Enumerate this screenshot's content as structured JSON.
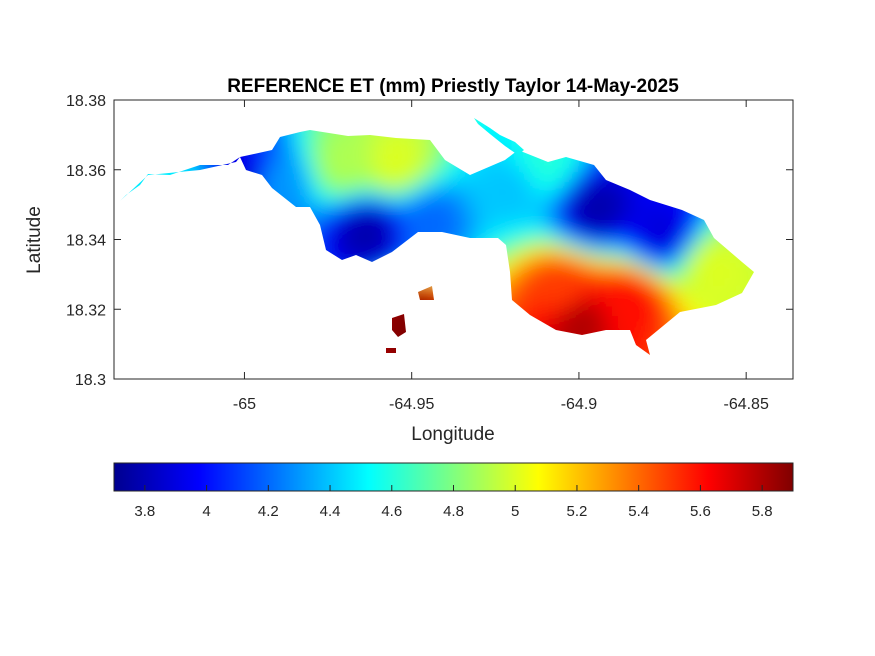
{
  "chart_data": {
    "type": "heatmap",
    "title": "REFERENCE ET (mm) Priestly Taylor 14-May-2025",
    "xlabel": "Longitude",
    "ylabel": "Latitude",
    "xlim": [
      -65.039,
      -64.836
    ],
    "ylim": [
      18.3,
      18.38
    ],
    "x_ticks": [
      -65,
      -64.95,
      -64.9,
      -64.85
    ],
    "x_tick_labels": [
      "-65",
      "-64.95",
      "-64.9",
      "-64.85"
    ],
    "y_ticks": [
      18.3,
      18.32,
      18.34,
      18.36,
      18.38
    ],
    "y_tick_labels": [
      "18.3",
      "18.32",
      "18.34",
      "18.36",
      "18.38"
    ],
    "grid": false,
    "colormap": "jet",
    "colorbar": {
      "location": "bottom",
      "range": [
        3.7,
        5.9
      ],
      "ticks": [
        3.8,
        4,
        4.2,
        4.4,
        4.6,
        4.8,
        5,
        5.2,
        5.4,
        5.6,
        5.8
      ],
      "tick_labels": [
        "3.8",
        "4",
        "4.2",
        "4.4",
        "4.6",
        "4.8",
        "5",
        "5.2",
        "5.4",
        "5.6",
        "5.8"
      ]
    },
    "approx_field_samples": [
      {
        "lon": -65.02,
        "lat": 18.352,
        "value": 4.5
      },
      {
        "lon": -65.0,
        "lat": 18.358,
        "value": 3.9
      },
      {
        "lon": -64.99,
        "lat": 18.356,
        "value": 4.3
      },
      {
        "lon": -64.97,
        "lat": 18.362,
        "value": 4.9
      },
      {
        "lon": -64.963,
        "lat": 18.342,
        "value": 3.8
      },
      {
        "lon": -64.955,
        "lat": 18.362,
        "value": 5.0
      },
      {
        "lon": -64.945,
        "lat": 18.345,
        "value": 4.2
      },
      {
        "lon": -64.92,
        "lat": 18.355,
        "value": 4.4
      },
      {
        "lon": -64.91,
        "lat": 18.362,
        "value": 4.6
      },
      {
        "lon": -64.895,
        "lat": 18.349,
        "value": 3.8
      },
      {
        "lon": -64.875,
        "lat": 18.342,
        "value": 3.9
      },
      {
        "lon": -64.86,
        "lat": 18.332,
        "value": 5.0
      },
      {
        "lon": -64.905,
        "lat": 18.325,
        "value": 5.5
      },
      {
        "lon": -64.885,
        "lat": 18.322,
        "value": 5.6
      },
      {
        "lon": -64.9,
        "lat": 18.317,
        "value": 5.8
      },
      {
        "lon": -64.95,
        "lat": 18.316,
        "value": 5.9
      }
    ]
  },
  "colors": {
    "axes": "#262626",
    "background": "#ffffff"
  }
}
